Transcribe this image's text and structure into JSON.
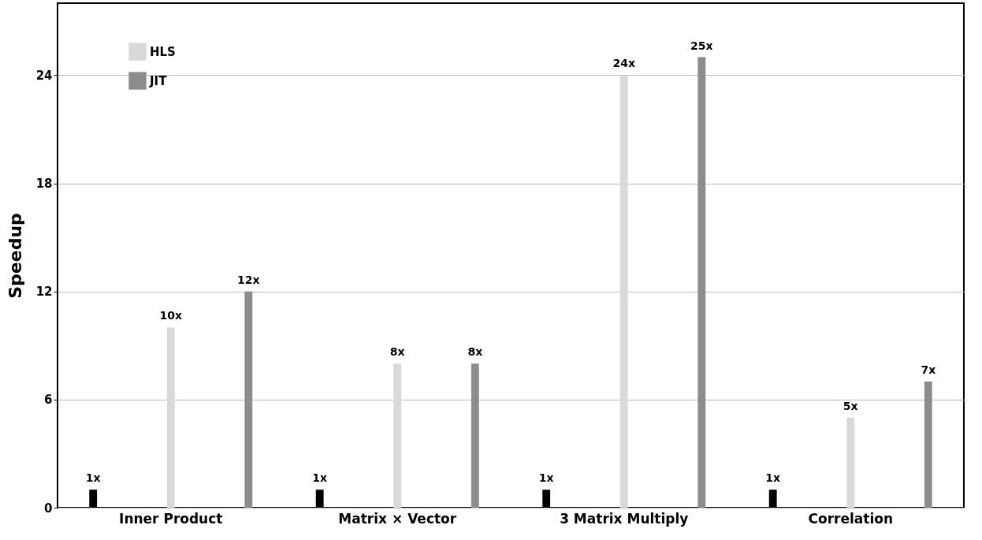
{
  "chart_data": {
    "type": "bar",
    "ylabel": "Speedup",
    "categories": [
      "Inner Product",
      "Matrix × Vector",
      "3 Matrix Multiply",
      "Correlation"
    ],
    "series": [
      {
        "color": "#000000",
        "values": [
          1,
          1,
          1,
          1
        ],
        "value_labels": [
          "1x",
          "1x",
          "1x",
          "1x"
        ]
      },
      {
        "name": "HLS",
        "color": "#d9d9d9",
        "values": [
          10,
          8,
          24,
          5
        ],
        "value_labels": [
          "10x",
          "8x",
          "24x",
          "5x"
        ]
      },
      {
        "name": "JIT",
        "color": "#8c8c8c",
        "values": [
          12,
          8,
          25,
          7
        ],
        "value_labels": [
          "12x",
          "8x",
          "25x",
          "7x"
        ]
      }
    ],
    "ylim": [
      0,
      28
    ],
    "yticks": [
      0,
      6,
      12,
      18,
      24
    ],
    "grid": "y",
    "legend": "top left"
  }
}
